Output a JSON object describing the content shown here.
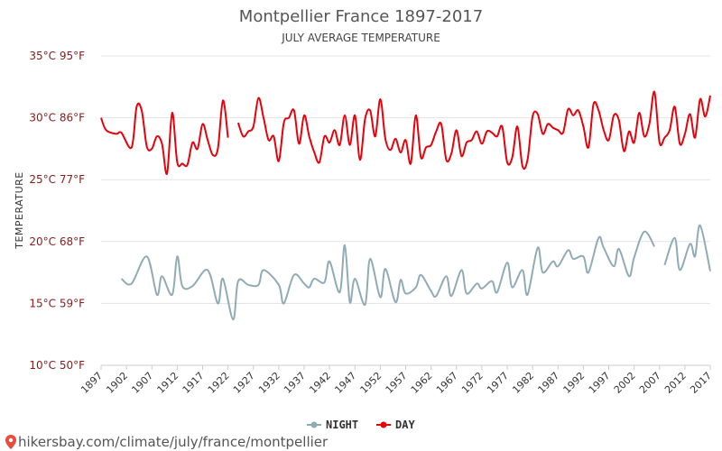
{
  "chart_data": {
    "type": "line",
    "title": "Montpellier France 1897-2017",
    "subtitle": "JULY AVERAGE TEMPERATURE",
    "ylabel": "TEMPERATURE",
    "ylim": [
      10,
      35
    ],
    "yticks": [
      {
        "value": 10,
        "label": "10°C 50°F"
      },
      {
        "value": 15,
        "label": "15°C 59°F"
      },
      {
        "value": 20,
        "label": "20°C 68°F"
      },
      {
        "value": 25,
        "label": "25°C 77°F"
      },
      {
        "value": 30,
        "label": "30°C 86°F"
      },
      {
        "value": 35,
        "label": "35°C 95°F"
      }
    ],
    "xlim": [
      1897,
      2017
    ],
    "xticks": [
      "1897",
      "1902",
      "1907",
      "1912",
      "1917",
      "1922",
      "1927",
      "1932",
      "1937",
      "1942",
      "1947",
      "1952",
      "1957",
      "1962",
      "1967",
      "1972",
      "1977",
      "1982",
      "1987",
      "1992",
      "1997",
      "2002",
      "2007",
      "2012",
      "2017"
    ],
    "grid": true,
    "legend_position": "bottom-center",
    "series": [
      {
        "name": "NIGHT",
        "color": "#90abb6",
        "x": [
          1901,
          1903,
          1906,
          1908,
          1909,
          1911,
          1912,
          1913,
          1915,
          1918,
          1920,
          1921,
          1923,
          1924,
          1926,
          1928,
          1929,
          1932,
          1933,
          1935,
          1937,
          1938,
          1939,
          1941,
          1942,
          1944,
          1945,
          1946,
          1947,
          1949,
          1950,
          1952,
          1953,
          1955,
          1956,
          1957,
          1959,
          1960,
          1962,
          1963,
          1965,
          1966,
          1968,
          1969,
          1971,
          1972,
          1974,
          1975,
          1977,
          1978,
          1980,
          1981,
          1983,
          1984,
          1986,
          1987,
          1989,
          1990,
          1992,
          1993,
          1995,
          1996,
          1998,
          1999,
          2001,
          2002,
          2004,
          2006,
          2007,
          2008,
          2010,
          2011,
          2013,
          2014,
          2015,
          2017
        ],
        "y": [
          17.0,
          16.6,
          18.8,
          15.7,
          17.2,
          15.7,
          18.8,
          16.4,
          16.4,
          17.7,
          15.0,
          17.0,
          13.7,
          16.8,
          16.5,
          16.5,
          17.7,
          16.5,
          15.0,
          17.3,
          16.6,
          16.3,
          17.0,
          16.7,
          18.4,
          15.9,
          19.7,
          15.1,
          17.0,
          14.9,
          18.6,
          15.5,
          17.8,
          15.1,
          16.9,
          15.8,
          16.3,
          17.3,
          16.0,
          15.6,
          17.2,
          15.6,
          17.7,
          15.8,
          16.6,
          16.2,
          16.8,
          15.9,
          18.3,
          16.3,
          17.7,
          15.7,
          19.5,
          17.5,
          18.4,
          18.0,
          19.3,
          18.6,
          18.8,
          17.5,
          20.3,
          19.5,
          18.0,
          19.4,
          17.2,
          18.7,
          20.8,
          19.6,
          null,
          18.1,
          20.3,
          17.7,
          19.8,
          18.8,
          21.3,
          17.6
        ]
      },
      {
        "name": "DAY",
        "color": "#e8000b",
        "x": [
          1897,
          1898,
          1900,
          1901,
          1903,
          1904,
          1905,
          1906,
          1907,
          1908,
          1909,
          1910,
          1911,
          1912,
          1913,
          1914,
          1915,
          1916,
          1917,
          1918,
          1919,
          1920,
          1921,
          1922,
          1923,
          1924,
          1925,
          1926,
          1927,
          1928,
          1929,
          1930,
          1931,
          1932,
          1933,
          1934,
          1935,
          1936,
          1937,
          1938,
          1939,
          1940,
          1941,
          1942,
          1943,
          1944,
          1945,
          1946,
          1947,
          1948,
          1949,
          1950,
          1951,
          1952,
          1953,
          1954,
          1955,
          1956,
          1957,
          1958,
          1959,
          1960,
          1961,
          1962,
          1963,
          1964,
          1965,
          1966,
          1967,
          1968,
          1969,
          1970,
          1971,
          1972,
          1973,
          1974,
          1975,
          1976,
          1977,
          1978,
          1979,
          1980,
          1981,
          1982,
          1983,
          1984,
          1985,
          1986,
          1987,
          1988,
          1989,
          1990,
          1991,
          1992,
          1993,
          1994,
          1995,
          1996,
          1997,
          1998,
          1999,
          2000,
          2001,
          2002,
          2003,
          2004,
          2005,
          2006,
          2007,
          2008,
          2009,
          2010,
          2011,
          2012,
          2013,
          2014,
          2015,
          2016,
          2017
        ],
        "y": [
          30.0,
          29.0,
          28.7,
          28.8,
          27.6,
          30.9,
          30.6,
          27.7,
          27.5,
          28.5,
          27.9,
          25.5,
          30.4,
          26.4,
          26.3,
          26.2,
          28.0,
          27.5,
          29.5,
          28.2,
          27.0,
          27.5,
          31.4,
          28.4,
          null,
          29.6,
          28.5,
          28.9,
          29.3,
          31.6,
          30.0,
          28.2,
          28.5,
          26.5,
          29.6,
          30.0,
          30.6,
          27.9,
          30.2,
          28.5,
          27.2,
          26.4,
          28.5,
          28.0,
          29.0,
          27.8,
          30.2,
          27.8,
          30.2,
          26.6,
          29.9,
          30.6,
          28.5,
          31.5,
          28.3,
          27.4,
          28.3,
          27.2,
          28.2,
          26.3,
          30.2,
          26.8,
          27.6,
          27.8,
          28.9,
          29.5,
          26.6,
          27.1,
          29.0,
          26.9,
          28.0,
          28.2,
          28.9,
          27.9,
          28.9,
          28.8,
          28.5,
          29.3,
          26.4,
          26.8,
          29.3,
          26.1,
          26.6,
          30.1,
          30.3,
          28.7,
          29.5,
          29.2,
          29.0,
          28.8,
          30.7,
          30.2,
          30.6,
          29.3,
          27.6,
          31.1,
          30.6,
          29.0,
          28.2,
          30.2,
          29.8,
          27.3,
          28.9,
          28.0,
          30.4,
          28.5,
          29.5,
          32.1,
          28.0,
          28.4,
          29.0,
          30.9,
          27.9,
          28.7,
          30.3,
          28.4,
          31.5,
          30.1,
          31.8
        ]
      }
    ]
  },
  "legend": {
    "night_label": "NIGHT",
    "day_label": "DAY"
  },
  "watermark": {
    "text": "hikersbay.com/climate/july/france/montpellier",
    "icon": "map-pin-icon"
  }
}
